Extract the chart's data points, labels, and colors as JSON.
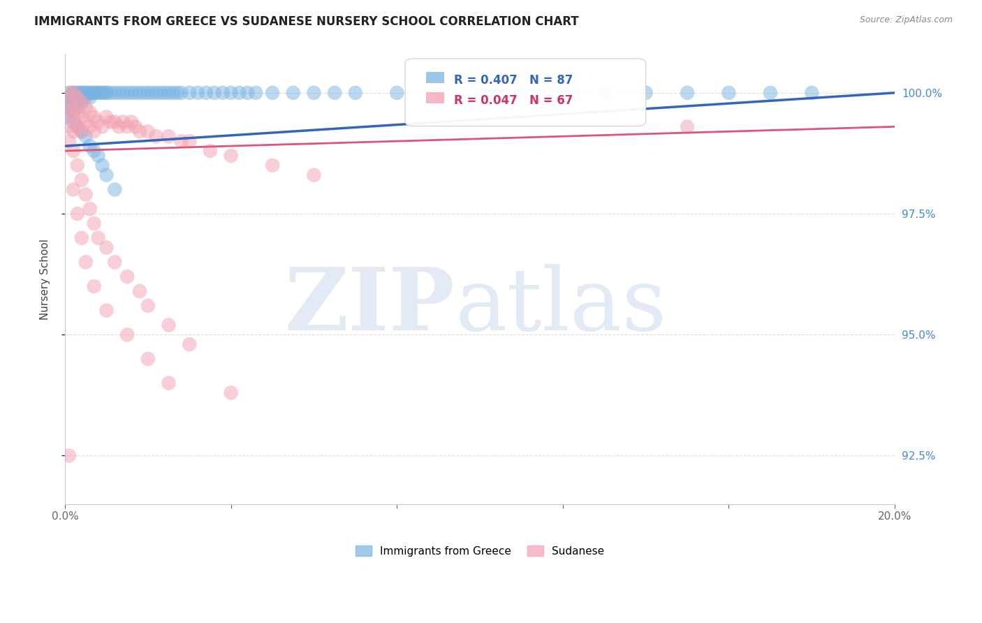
{
  "title": "IMMIGRANTS FROM GREECE VS SUDANESE NURSERY SCHOOL CORRELATION CHART",
  "source": "Source: ZipAtlas.com",
  "ylabel": "Nursery School",
  "y_ticks": [
    92.5,
    95.0,
    97.5,
    100.0
  ],
  "y_tick_labels": [
    "92.5%",
    "95.0%",
    "97.5%",
    "100.0%"
  ],
  "legend_blue_r": "R = 0.407",
  "legend_blue_n": "N = 87",
  "legend_pink_r": "R = 0.047",
  "legend_pink_n": "N = 67",
  "legend_blue_label": "Immigrants from Greece",
  "legend_pink_label": "Sudanese",
  "blue_color": "#7ab3e0",
  "pink_color": "#f4a0b0",
  "blue_line_color": "#3366bb",
  "pink_line_color": "#dd5577",
  "watermark_zip": "ZIP",
  "watermark_atlas": "atlas",
  "blue_scatter_x": [
    0.001,
    0.001,
    0.001,
    0.001,
    0.002,
    0.002,
    0.002,
    0.002,
    0.002,
    0.002,
    0.003,
    0.003,
    0.003,
    0.003,
    0.003,
    0.004,
    0.004,
    0.004,
    0.004,
    0.005,
    0.005,
    0.005,
    0.006,
    0.006,
    0.006,
    0.007,
    0.007,
    0.008,
    0.008,
    0.009,
    0.009,
    0.01,
    0.01,
    0.011,
    0.012,
    0.013,
    0.014,
    0.015,
    0.016,
    0.017,
    0.018,
    0.019,
    0.02,
    0.021,
    0.022,
    0.023,
    0.024,
    0.025,
    0.026,
    0.027,
    0.028,
    0.03,
    0.032,
    0.034,
    0.036,
    0.038,
    0.04,
    0.042,
    0.044,
    0.046,
    0.05,
    0.055,
    0.06,
    0.065,
    0.07,
    0.08,
    0.09,
    0.1,
    0.11,
    0.12,
    0.13,
    0.14,
    0.15,
    0.16,
    0.17,
    0.18,
    0.001,
    0.002,
    0.003,
    0.004,
    0.005,
    0.006,
    0.007,
    0.008,
    0.009,
    0.01,
    0.012
  ],
  "blue_scatter_y": [
    99.9,
    100.0,
    99.8,
    99.7,
    100.0,
    100.0,
    99.9,
    99.8,
    99.7,
    99.6,
    100.0,
    100.0,
    99.9,
    99.8,
    99.7,
    100.0,
    100.0,
    99.9,
    99.8,
    100.0,
    100.0,
    99.9,
    100.0,
    100.0,
    99.9,
    100.0,
    100.0,
    100.0,
    100.0,
    100.0,
    100.0,
    100.0,
    100.0,
    100.0,
    100.0,
    100.0,
    100.0,
    100.0,
    100.0,
    100.0,
    100.0,
    100.0,
    100.0,
    100.0,
    100.0,
    100.0,
    100.0,
    100.0,
    100.0,
    100.0,
    100.0,
    100.0,
    100.0,
    100.0,
    100.0,
    100.0,
    100.0,
    100.0,
    100.0,
    100.0,
    100.0,
    100.0,
    100.0,
    100.0,
    100.0,
    100.0,
    100.0,
    100.0,
    100.0,
    100.0,
    100.0,
    100.0,
    100.0,
    100.0,
    100.0,
    100.0,
    99.5,
    99.4,
    99.3,
    99.2,
    99.1,
    98.9,
    98.8,
    98.7,
    98.5,
    98.3,
    98.0
  ],
  "pink_scatter_x": [
    0.001,
    0.001,
    0.001,
    0.001,
    0.002,
    0.002,
    0.002,
    0.002,
    0.003,
    0.003,
    0.003,
    0.004,
    0.004,
    0.004,
    0.005,
    0.005,
    0.006,
    0.006,
    0.007,
    0.007,
    0.008,
    0.009,
    0.01,
    0.011,
    0.012,
    0.013,
    0.014,
    0.015,
    0.016,
    0.017,
    0.018,
    0.02,
    0.022,
    0.025,
    0.028,
    0.03,
    0.035,
    0.04,
    0.05,
    0.06,
    0.001,
    0.002,
    0.003,
    0.004,
    0.005,
    0.006,
    0.007,
    0.008,
    0.01,
    0.012,
    0.015,
    0.018,
    0.02,
    0.025,
    0.03,
    0.002,
    0.003,
    0.004,
    0.005,
    0.007,
    0.01,
    0.015,
    0.02,
    0.025,
    0.04,
    0.001,
    0.15
  ],
  "pink_scatter_y": [
    100.0,
    99.8,
    99.6,
    99.3,
    100.0,
    99.7,
    99.5,
    99.2,
    99.9,
    99.6,
    99.3,
    99.8,
    99.5,
    99.2,
    99.7,
    99.4,
    99.6,
    99.3,
    99.5,
    99.2,
    99.4,
    99.3,
    99.5,
    99.4,
    99.4,
    99.3,
    99.4,
    99.3,
    99.4,
    99.3,
    99.2,
    99.2,
    99.1,
    99.1,
    99.0,
    99.0,
    98.8,
    98.7,
    98.5,
    98.3,
    99.0,
    98.8,
    98.5,
    98.2,
    97.9,
    97.6,
    97.3,
    97.0,
    96.8,
    96.5,
    96.2,
    95.9,
    95.6,
    95.2,
    94.8,
    98.0,
    97.5,
    97.0,
    96.5,
    96.0,
    95.5,
    95.0,
    94.5,
    94.0,
    93.8,
    92.5,
    99.3
  ],
  "xlim": [
    0.0,
    0.2
  ],
  "ylim": [
    91.5,
    100.8
  ],
  "blue_line_x0": 0.0,
  "blue_line_y0": 98.9,
  "blue_line_x1": 0.2,
  "blue_line_y1": 100.0,
  "pink_line_x0": 0.0,
  "pink_line_y0": 98.8,
  "pink_line_x1": 0.2,
  "pink_line_y1": 99.3,
  "background_color": "#ffffff",
  "grid_color": "#dddddd"
}
